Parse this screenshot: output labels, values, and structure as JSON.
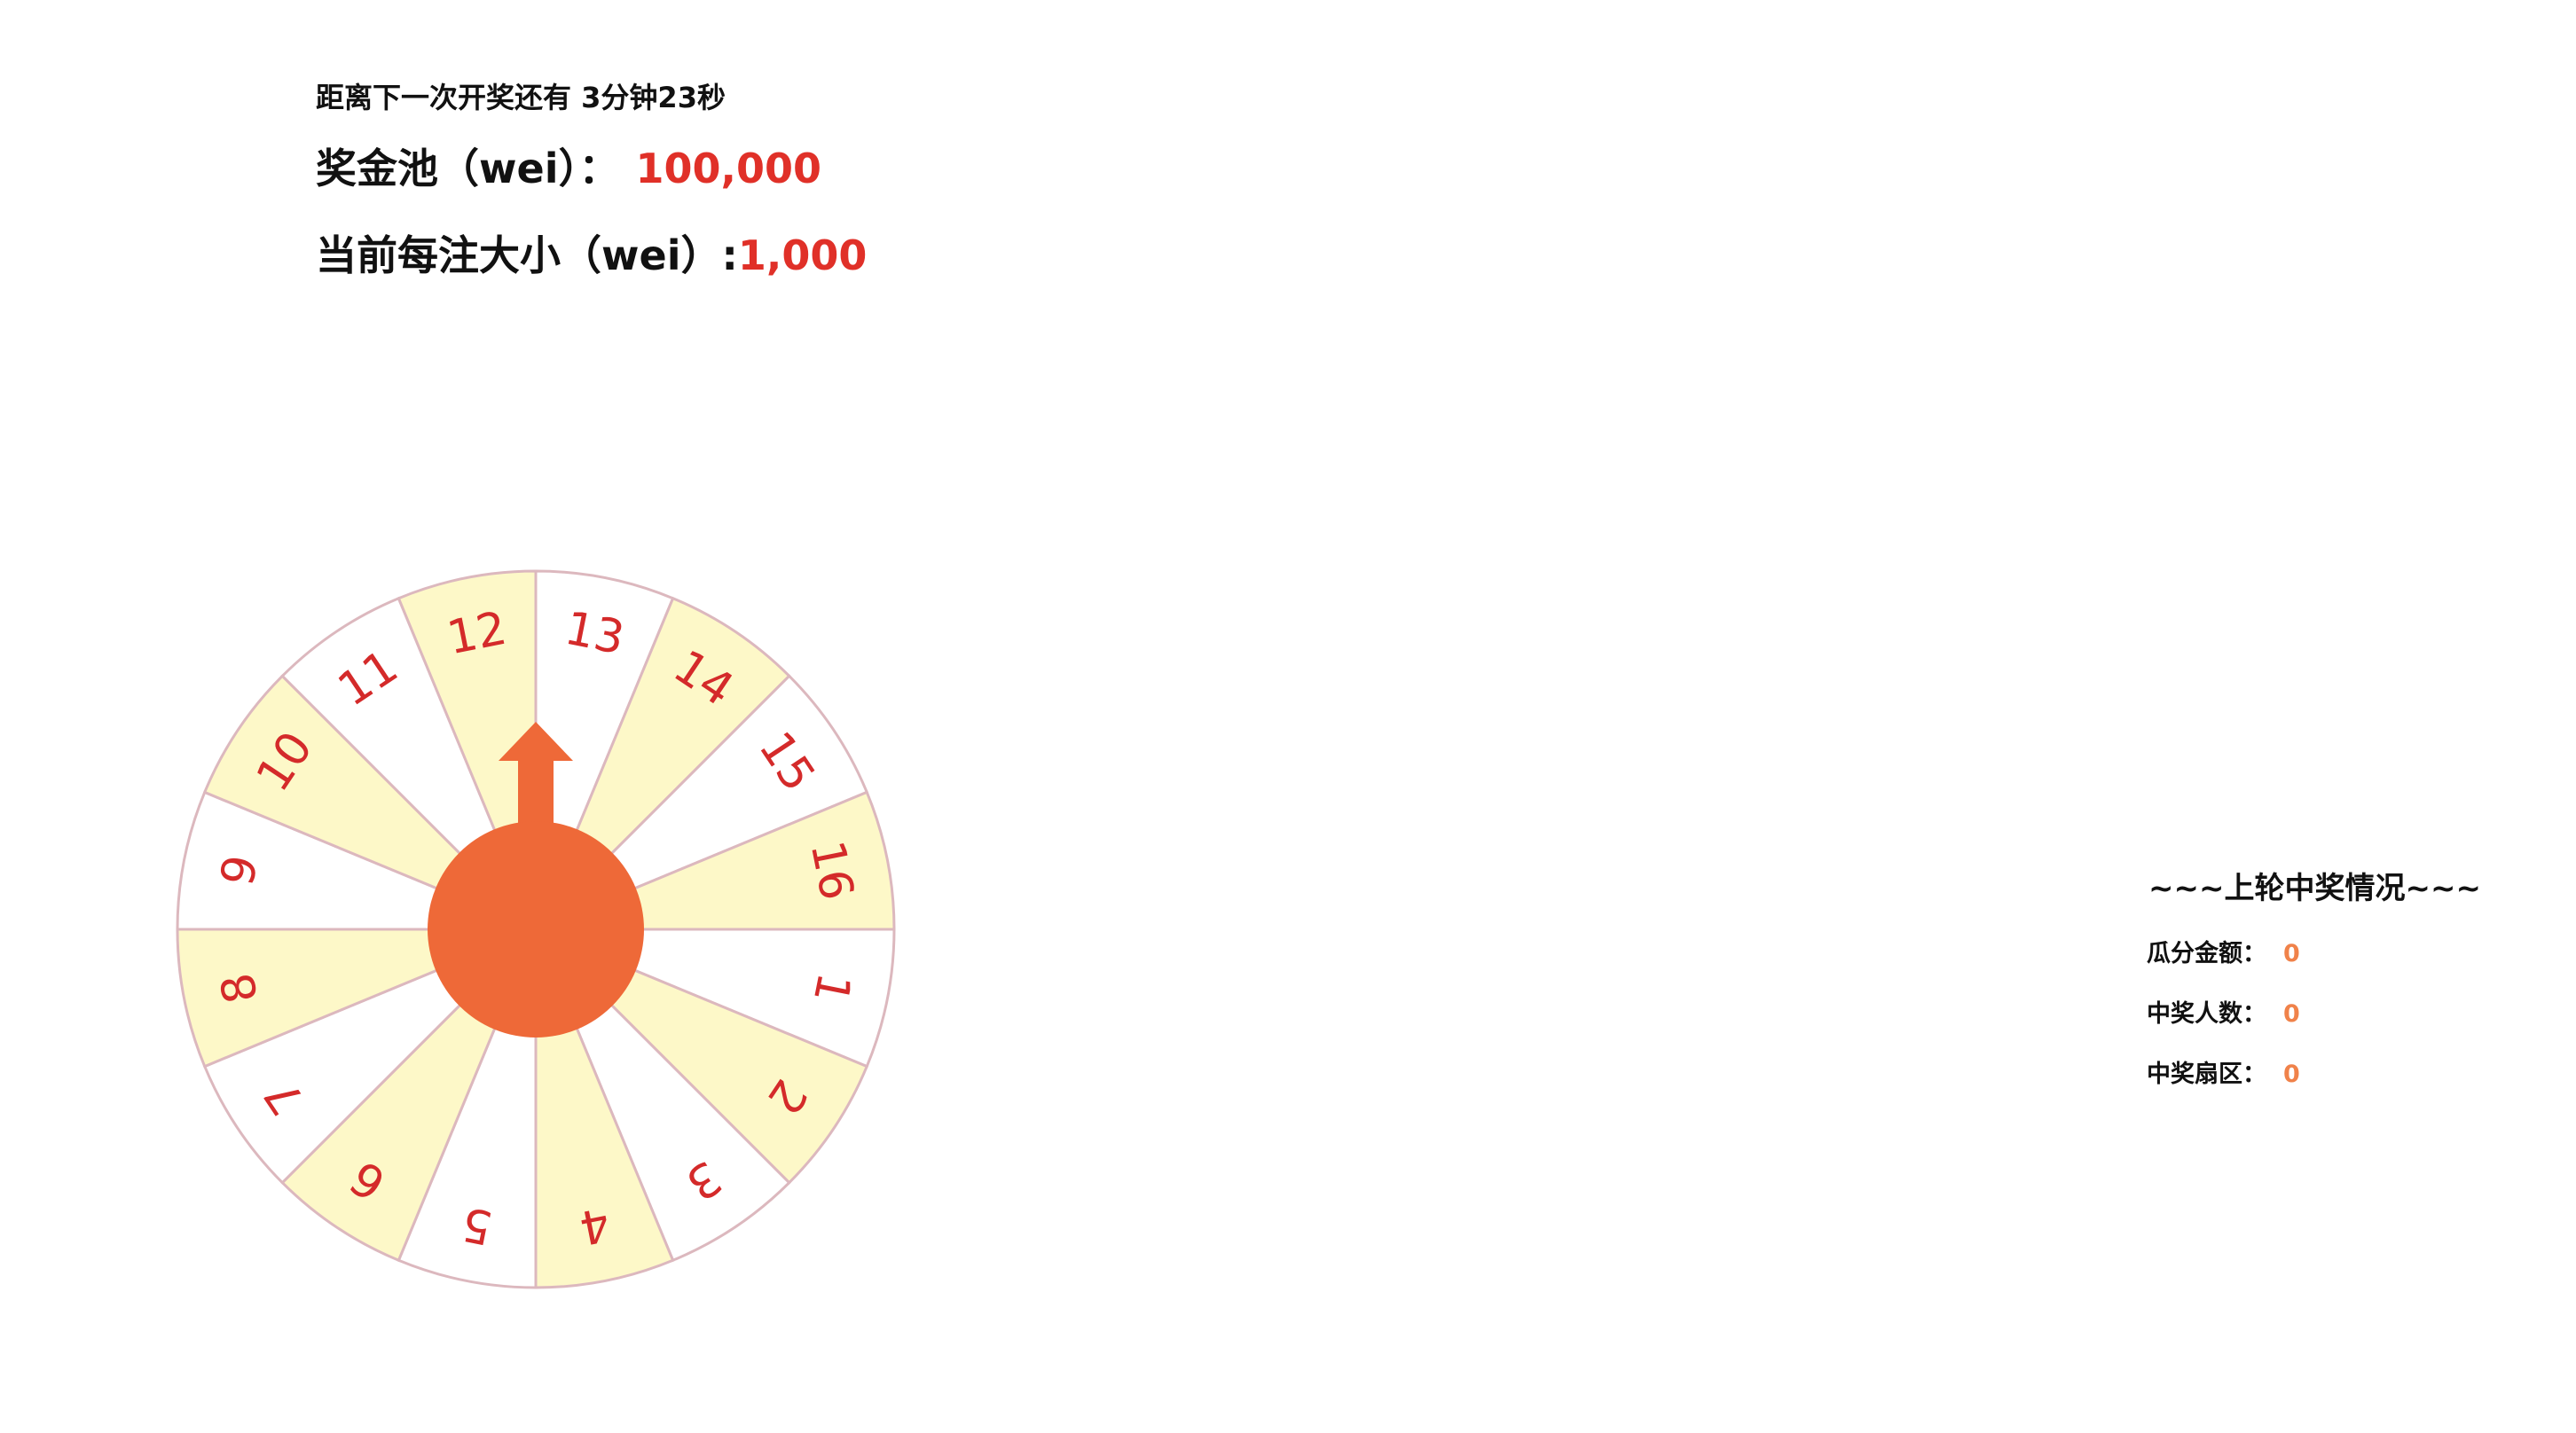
{
  "countdown": {
    "label": "距离下一次开奖还有",
    "value": "3分钟23秒"
  },
  "pool": {
    "label": "奖金池（wei）：",
    "value": "100,000"
  },
  "bet": {
    "label": "当前每注大小（wei）:",
    "value": "1,000"
  },
  "wheel": {
    "sectors": [
      "1",
      "2",
      "3",
      "4",
      "5",
      "6",
      "7",
      "8",
      "9",
      "10",
      "11",
      "12",
      "13",
      "14",
      "15",
      "16"
    ],
    "colors": {
      "fill_a": "#ffffff",
      "fill_b": "#fdf8c8",
      "border": "#dcb8be",
      "number": "#d42a2a",
      "pointer": "#ee6938"
    }
  },
  "last_round": {
    "title": "~~~上轮中奖情况~~~",
    "rows": [
      {
        "label": "瓜分金额：",
        "value": "0"
      },
      {
        "label": "中奖人数：",
        "value": "0"
      },
      {
        "label": "中奖扇区：",
        "value": "0"
      }
    ]
  }
}
